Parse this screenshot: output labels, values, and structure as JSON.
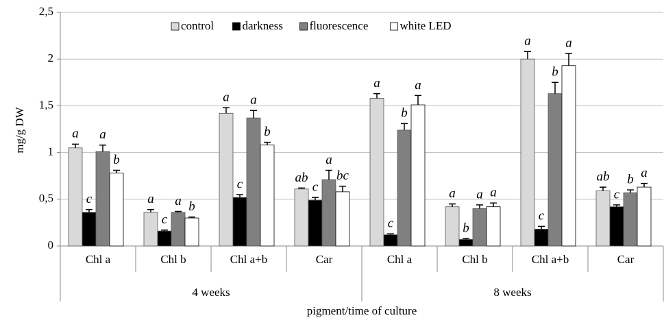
{
  "chart_data": {
    "type": "bar",
    "y_label": "mg/g DW",
    "x_label": "pigment/time of culture",
    "categories": [
      "Chl a",
      "Chl b",
      "Chl a+b",
      "Car",
      "Chl a",
      "Chl b",
      "Chl a+b",
      "Car"
    ],
    "groups": [
      "4 weeks",
      "8 weeks"
    ],
    "ylim": [
      0,
      2.5
    ],
    "yticks": [
      0,
      {
        "value": 0.5,
        "label": "0,5"
      },
      1,
      {
        "value": 1.5,
        "label": "1,5"
      },
      2,
      {
        "value": 2.5,
        "label": "2,5"
      }
    ],
    "grid": true,
    "legend": "top",
    "series": [
      {
        "name": "control",
        "color": "#d9d9d9",
        "values": [
          1.05,
          0.36,
          1.42,
          0.61,
          1.58,
          0.42,
          2.0,
          0.59
        ],
        "errors": [
          0.04,
          0.03,
          0.06,
          0.01,
          0.05,
          0.03,
          0.08,
          0.04
        ],
        "letters": [
          "a",
          "a",
          "a",
          "ab",
          "a",
          "a",
          "a",
          "ab"
        ]
      },
      {
        "name": "darkness",
        "color": "#000000",
        "values": [
          0.36,
          0.16,
          0.52,
          0.49,
          0.12,
          0.07,
          0.18,
          0.42
        ],
        "errors": [
          0.03,
          0.01,
          0.03,
          0.03,
          0.01,
          0.01,
          0.03,
          0.02
        ],
        "letters": [
          "c",
          "c",
          "c",
          "c",
          "c",
          "b",
          "c",
          "c"
        ]
      },
      {
        "name": "fluorescence",
        "color": "#808080",
        "values": [
          1.01,
          0.36,
          1.37,
          0.71,
          1.24,
          0.4,
          1.63,
          0.57
        ],
        "errors": [
          0.07,
          0.01,
          0.08,
          0.1,
          0.07,
          0.04,
          0.12,
          0.03
        ],
        "letters": [
          "a",
          "a",
          "a",
          "a",
          "b",
          "a",
          "b",
          "b"
        ]
      },
      {
        "name": "white LED",
        "color": "#ffffff",
        "values": [
          0.78,
          0.3,
          1.08,
          0.58,
          1.51,
          0.42,
          1.93,
          0.63
        ],
        "errors": [
          0.03,
          0.01,
          0.03,
          0.06,
          0.1,
          0.04,
          0.13,
          0.04
        ],
        "letters": [
          "b",
          "b",
          "b",
          "bc",
          "a",
          "a",
          "a",
          "a"
        ]
      }
    ]
  }
}
